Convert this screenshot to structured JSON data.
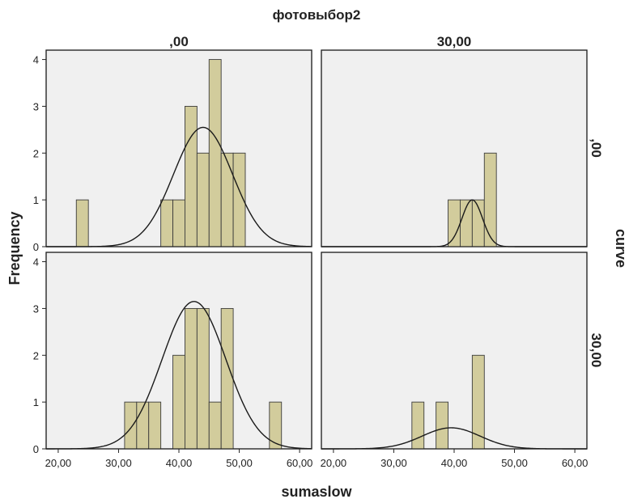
{
  "title": "фотовыбор2",
  "col_headers": [
    ",00",
    "30,00"
  ],
  "row_headers": [
    ",00",
    "30,00"
  ],
  "right_label": "curve",
  "xlabel": "sumaslow",
  "ylabel": "Frequency",
  "colors": {
    "bar_fill": "#d2cc9c",
    "bar_stroke": "#3b3b3b",
    "panel_bg": "#f0f0f0",
    "curve": "#1a1a1a"
  },
  "chart_data": {
    "type": "bar",
    "title": "фотовыбор2",
    "xlabel": "sumaslow",
    "ylabel": "Frequency",
    "xlim": [
      18,
      62
    ],
    "ylim": [
      0,
      4.2
    ],
    "x_ticks": [
      "20,00",
      "30,00",
      "40,00",
      "50,00",
      "60,00"
    ],
    "x_tick_values": [
      20,
      30,
      40,
      50,
      60
    ],
    "y_ticks": [
      "0",
      "1",
      "2",
      "3",
      "4"
    ],
    "y_tick_values": [
      0,
      1,
      2,
      3,
      4
    ],
    "bin_width": 2,
    "grid": false,
    "panels": [
      {
        "row": ",00",
        "col": ",00",
        "bars": [
          [
            23,
            1
          ],
          [
            37,
            1
          ],
          [
            39,
            1
          ],
          [
            41,
            3
          ],
          [
            43,
            2
          ],
          [
            45,
            4
          ],
          [
            47,
            2
          ],
          [
            49,
            2
          ]
        ],
        "curve": {
          "mean": 44,
          "sd": 4.9,
          "peak": 2.55
        }
      },
      {
        "row": ",00",
        "col": "30,00",
        "bars": [
          [
            39,
            1
          ],
          [
            41,
            1
          ],
          [
            43,
            1
          ],
          [
            45,
            2
          ]
        ],
        "curve": {
          "mean": 43,
          "sd": 1.7,
          "peak": 1.0
        }
      },
      {
        "row": "30,00",
        "col": ",00",
        "bars": [
          [
            31,
            1
          ],
          [
            33,
            1
          ],
          [
            35,
            1
          ],
          [
            39,
            2
          ],
          [
            41,
            3
          ],
          [
            43,
            3
          ],
          [
            45,
            1
          ],
          [
            47,
            3
          ],
          [
            55,
            1
          ]
        ],
        "curve": {
          "mean": 42.5,
          "sd": 5.3,
          "peak": 3.15
        }
      },
      {
        "row": "30,00",
        "col": "30,00",
        "bars": [
          [
            33,
            1
          ],
          [
            37,
            1
          ],
          [
            43,
            2
          ]
        ],
        "curve": {
          "mean": 39.5,
          "sd": 4.8,
          "peak": 0.45
        }
      }
    ]
  }
}
